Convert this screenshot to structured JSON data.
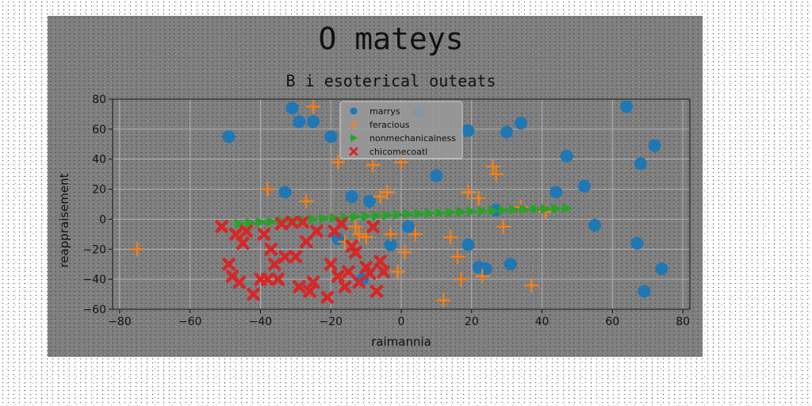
{
  "chart_data": {
    "type": "scatter",
    "title": "O mateys",
    "subtitle": "B i esoterical outeats",
    "xlabel": "raimannia",
    "ylabel": "reappraisement",
    "xlim": [
      -82,
      82
    ],
    "ylim": [
      -60,
      80
    ],
    "xticks": [
      -80,
      -60,
      -40,
      -20,
      0,
      20,
      40,
      60,
      80
    ],
    "yticks": [
      -60,
      -40,
      -20,
      0,
      20,
      40,
      60,
      80
    ],
    "grid": true,
    "legend_position": "top-center",
    "series": [
      {
        "name": "marrys",
        "marker": "circle",
        "color": "#1f77b4",
        "x": [
          -49,
          -31,
          -29,
          -25,
          -33,
          -20,
          -18,
          -14,
          -11,
          -9,
          -3,
          2,
          5,
          10,
          19,
          19,
          22,
          24,
          27,
          30,
          31,
          34,
          44,
          47,
          52,
          55,
          64,
          67,
          68,
          69,
          72,
          74
        ],
        "y": [
          55,
          74,
          65,
          65,
          18,
          55,
          -13,
          15,
          -40,
          12,
          -17,
          -5,
          71,
          29,
          59,
          -17,
          -32,
          -33,
          6,
          58,
          -30,
          64,
          18,
          42,
          22,
          -4,
          75,
          -16,
          37,
          -48,
          49,
          -33
        ]
      },
      {
        "name": "feracious",
        "marker": "plus",
        "color": "#ff7f0e",
        "x": [
          -75,
          -38,
          -27,
          -25,
          -18,
          -16,
          -13,
          -12,
          -10,
          -8,
          -6,
          -4,
          -3,
          -1,
          0,
          1,
          4,
          12,
          14,
          16,
          17,
          19,
          22,
          23,
          26,
          27,
          29,
          34,
          37,
          41
        ],
        "y": [
          -20,
          20,
          12,
          75,
          38,
          -15,
          -5,
          -10,
          -12,
          36,
          15,
          18,
          -10,
          -35,
          38,
          -22,
          -10,
          -54,
          -12,
          -25,
          -40,
          18,
          14,
          -38,
          35,
          30,
          -5,
          8,
          -44,
          5
        ]
      },
      {
        "name": "nonmechanicalness",
        "marker": "triangle-right",
        "color": "#2ca02c",
        "x": [
          -46,
          -43,
          -40,
          -37,
          -34,
          -31,
          -28,
          -25,
          -22,
          -19,
          -16,
          -13,
          -10,
          -7,
          -4,
          -1,
          2,
          5,
          8,
          11,
          14,
          17,
          20,
          23,
          26,
          29,
          32,
          35,
          38,
          41,
          44,
          47
        ],
        "y": [
          -3,
          -2.5,
          -2,
          -1.7,
          -1.3,
          -0.9,
          -0.5,
          0,
          0.4,
          0.8,
          1.2,
          1.6,
          2,
          2.3,
          2.6,
          3,
          3.3,
          3.6,
          3.9,
          4.2,
          4.5,
          4.8,
          5.1,
          5.4,
          5.7,
          6,
          6.3,
          6.5,
          6.7,
          6.9,
          7.1,
          7.3
        ]
      },
      {
        "name": "chicomecoatl",
        "marker": "x",
        "color": "#d62728",
        "x": [
          -51,
          -49,
          -48,
          -47,
          -46,
          -45,
          -44,
          -42,
          -40,
          -39,
          -38,
          -37,
          -36,
          -35,
          -34,
          -33,
          -31,
          -30,
          -29,
          -28,
          -27,
          -26,
          -25,
          -24,
          -21,
          -20,
          -19,
          -18,
          -17,
          -16,
          -15,
          -14,
          -13,
          -12,
          -10,
          -9,
          -8,
          -7,
          -6,
          -5
        ],
        "y": [
          -5,
          -30,
          -38,
          -10,
          -42,
          -16,
          -8,
          -50,
          -40,
          -10,
          -40,
          -20,
          -30,
          -40,
          -3,
          -25,
          -2,
          -25,
          -45,
          -2,
          -15,
          -48,
          -42,
          -8,
          -52,
          -30,
          -8,
          -38,
          -3,
          -45,
          -35,
          -18,
          -22,
          -42,
          -32,
          -36,
          -5,
          -48,
          -28,
          -35
        ]
      }
    ]
  }
}
